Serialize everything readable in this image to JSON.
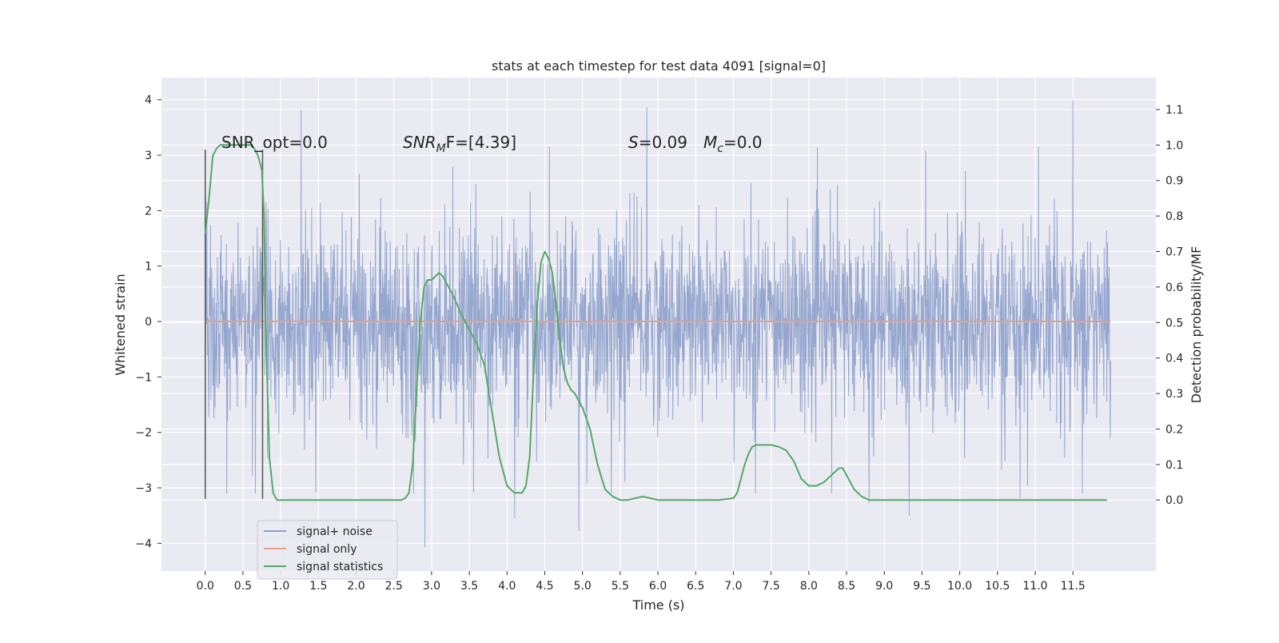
{
  "chart_data": {
    "type": "line",
    "title": "stats at each timestep for test data 4091 [signal=0]",
    "xlabel": "Time (s)",
    "ylabel": "Whitened strain",
    "y2label": "Detection probability/MF",
    "xlim": [
      -0.58,
      12.6
    ],
    "ylim": [
      -4.5,
      4.4
    ],
    "y2lim": [
      -0.2,
      1.19
    ],
    "grid": true,
    "legend_position": "lower-left",
    "x_ticks": [
      "0.0",
      "0.5",
      "1.0",
      "1.5",
      "2.0",
      "2.5",
      "3.0",
      "3.5",
      "4.0",
      "4.5",
      "5.0",
      "5.5",
      "6.0",
      "6.5",
      "7.0",
      "7.5",
      "8.0",
      "8.5",
      "9.0",
      "9.5",
      "10.0",
      "10.5",
      "11.0",
      "11.5"
    ],
    "y_ticks": [
      "4",
      "3",
      "2",
      "1",
      "0",
      "−1",
      "−2",
      "−3",
      "−4"
    ],
    "y2_ticks": [
      "1.1",
      "1.0",
      "0.9",
      "0.8",
      "0.7",
      "0.6",
      "0.5",
      "0.4",
      "0.3",
      "0.2",
      "0.1",
      "0.0"
    ],
    "annotations": {
      "snr_opt": "SNR_opt=0.0",
      "snr_mf": "SNR",
      "snr_mf_sub": "M",
      "snr_mf_rest": "F=[4.39]",
      "s_label": "S",
      "s_value": "=0.09",
      "mc_label": "M",
      "mc_sub": "c",
      "mc_value": "=0.0"
    },
    "window_markers": {
      "x": [
        0.0,
        0.76
      ],
      "y_range": [
        -3.2,
        3.1
      ]
    },
    "series": [
      {
        "name": "signal+ noise",
        "color": "#8da0cb",
        "kind": "noise",
        "x_range": [
          0.0,
          12.0
        ],
        "band_core": [
          -1.3,
          1.25
        ],
        "typical_peak": [
          2.4,
          -2.3
        ],
        "extremes": [
          {
            "x": 1.27,
            "y": 3.82
          },
          {
            "x": 11.5,
            "y": 3.99
          },
          {
            "x": 5.85,
            "y": 3.87
          },
          {
            "x": 2.91,
            "y": -4.07
          },
          {
            "x": 4.95,
            "y": -3.78
          },
          {
            "x": 9.33,
            "y": -3.5
          },
          {
            "x": 4.1,
            "y": -3.55
          },
          {
            "x": 8.8,
            "y": -3.28
          },
          {
            "x": 10.8,
            "y": -3.19
          }
        ]
      },
      {
        "name": "signal only",
        "color": "#e5a087",
        "x": [
          0.0,
          12.0
        ],
        "y": [
          0.0,
          0.0
        ]
      },
      {
        "name": "signal statistics",
        "color": "#55a868",
        "axis": "right",
        "x": [
          0.0,
          0.05,
          0.1,
          0.15,
          0.2,
          0.3,
          0.4,
          0.5,
          0.6,
          0.65,
          0.7,
          0.75,
          0.78,
          0.8,
          0.85,
          0.9,
          0.95,
          1.0,
          1.2,
          1.5,
          1.7,
          1.9,
          2.2,
          2.4,
          2.6,
          2.65,
          2.7,
          2.75,
          2.8,
          2.85,
          2.9,
          2.95,
          3.0,
          3.05,
          3.1,
          3.15,
          3.2,
          3.3,
          3.4,
          3.5,
          3.6,
          3.7,
          3.8,
          3.9,
          4.0,
          4.1,
          4.15,
          4.2,
          4.25,
          4.3,
          4.35,
          4.4,
          4.45,
          4.5,
          4.55,
          4.6,
          4.65,
          4.7,
          4.75,
          4.8,
          4.85,
          4.9,
          5.0,
          5.1,
          5.2,
          5.3,
          5.4,
          5.5,
          5.6,
          5.7,
          5.8,
          5.9,
          6.0,
          6.2,
          6.5,
          6.8,
          7.0,
          7.05,
          7.1,
          7.15,
          7.2,
          7.25,
          7.3,
          7.4,
          7.5,
          7.6,
          7.7,
          7.8,
          7.9,
          8.0,
          8.1,
          8.2,
          8.3,
          8.4,
          8.45,
          8.5,
          8.6,
          8.7,
          8.8,
          9.0,
          9.5,
          10.0,
          10.5,
          11.0,
          11.5,
          11.8,
          11.95
        ],
        "y": [
          0.75,
          0.85,
          0.97,
          0.99,
          1.0,
          1.0,
          1.0,
          1.0,
          1.0,
          0.99,
          0.97,
          0.93,
          0.8,
          0.5,
          0.12,
          0.02,
          0.0,
          0.0,
          0.0,
          0.0,
          0.0,
          0.0,
          0.0,
          0.0,
          0.0,
          0.005,
          0.02,
          0.1,
          0.3,
          0.5,
          0.6,
          0.62,
          0.62,
          0.63,
          0.64,
          0.63,
          0.61,
          0.57,
          0.52,
          0.48,
          0.44,
          0.38,
          0.25,
          0.12,
          0.04,
          0.02,
          0.02,
          0.02,
          0.04,
          0.12,
          0.35,
          0.55,
          0.67,
          0.7,
          0.68,
          0.64,
          0.55,
          0.45,
          0.37,
          0.33,
          0.31,
          0.3,
          0.26,
          0.2,
          0.1,
          0.03,
          0.01,
          0.0,
          0.0,
          0.005,
          0.01,
          0.005,
          0.0,
          0.0,
          0.0,
          0.0,
          0.005,
          0.02,
          0.06,
          0.1,
          0.13,
          0.15,
          0.155,
          0.155,
          0.155,
          0.15,
          0.14,
          0.11,
          0.06,
          0.04,
          0.04,
          0.05,
          0.07,
          0.09,
          0.09,
          0.07,
          0.03,
          0.01,
          0.0,
          0.0,
          0.0,
          0.0,
          0.0,
          0.0,
          0.0,
          0.0,
          0.0
        ]
      }
    ]
  }
}
